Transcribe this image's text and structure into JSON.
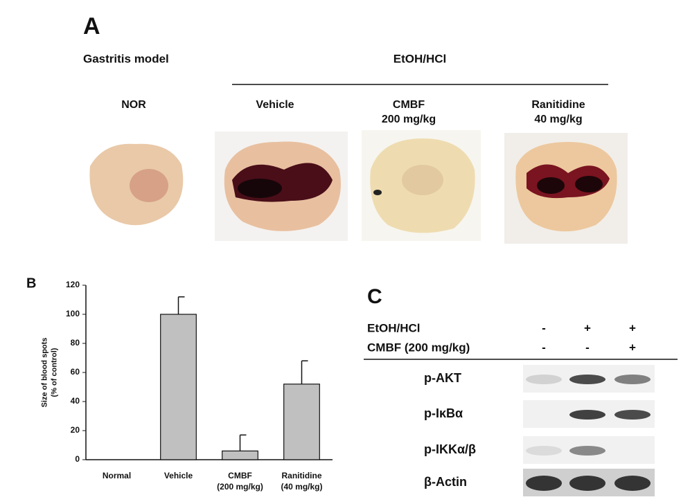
{
  "panel_a": {
    "letter": "A",
    "model_label": "Gastritis model",
    "treatment_header": "EtOH/HCl",
    "groups": [
      "NOR",
      "Vehicle",
      "CMBF\n200 mg/kg",
      "Ranitidine\n40 mg/kg"
    ]
  },
  "chart_data": {
    "type": "bar",
    "letter": "B",
    "ylabel": "Size of blood spots\n(% of control)",
    "categories": [
      "Normal",
      "Vehicle",
      "CMBF\n(200 mg/kg)",
      "Ranitidine\n(40 mg/kg)"
    ],
    "series": [
      {
        "color": "#c0c0c0",
        "values": [
          0,
          100,
          6,
          52
        ],
        "errors": [
          null,
          12,
          11,
          16
        ]
      }
    ],
    "ylim": [
      0,
      120
    ],
    "yticks": [
      0,
      20,
      40,
      60,
      80,
      100,
      120
    ],
    "grid": false
  },
  "panel_c": {
    "letter": "C",
    "conditions": [
      {
        "label": "EtOH/HCl",
        "signs": [
          "-",
          "+",
          "+"
        ]
      },
      {
        "label": "CMBF (200 mg/kg)",
        "signs": [
          "-",
          "-",
          "+"
        ]
      }
    ],
    "blots": [
      "p-AKT",
      "p-IκBα",
      "p-IKKα/β",
      "β-Actin"
    ]
  }
}
